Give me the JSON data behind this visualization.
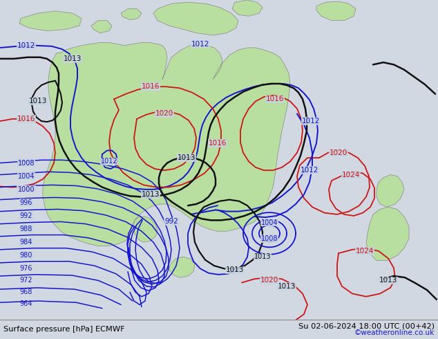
{
  "title_left": "Surface pressure [hPa] ECMWF",
  "title_right": "Su 02-06-2024 18:00 UTC (00+42)",
  "watermark": "©weatheronline.co.uk",
  "bg_color": "#d2d8e2",
  "land_color": "#b8dfa0",
  "land_edge": "#888888",
  "sea_color": "#c8d4e2",
  "fig_width": 6.34,
  "fig_height": 4.9,
  "dpi": 100
}
